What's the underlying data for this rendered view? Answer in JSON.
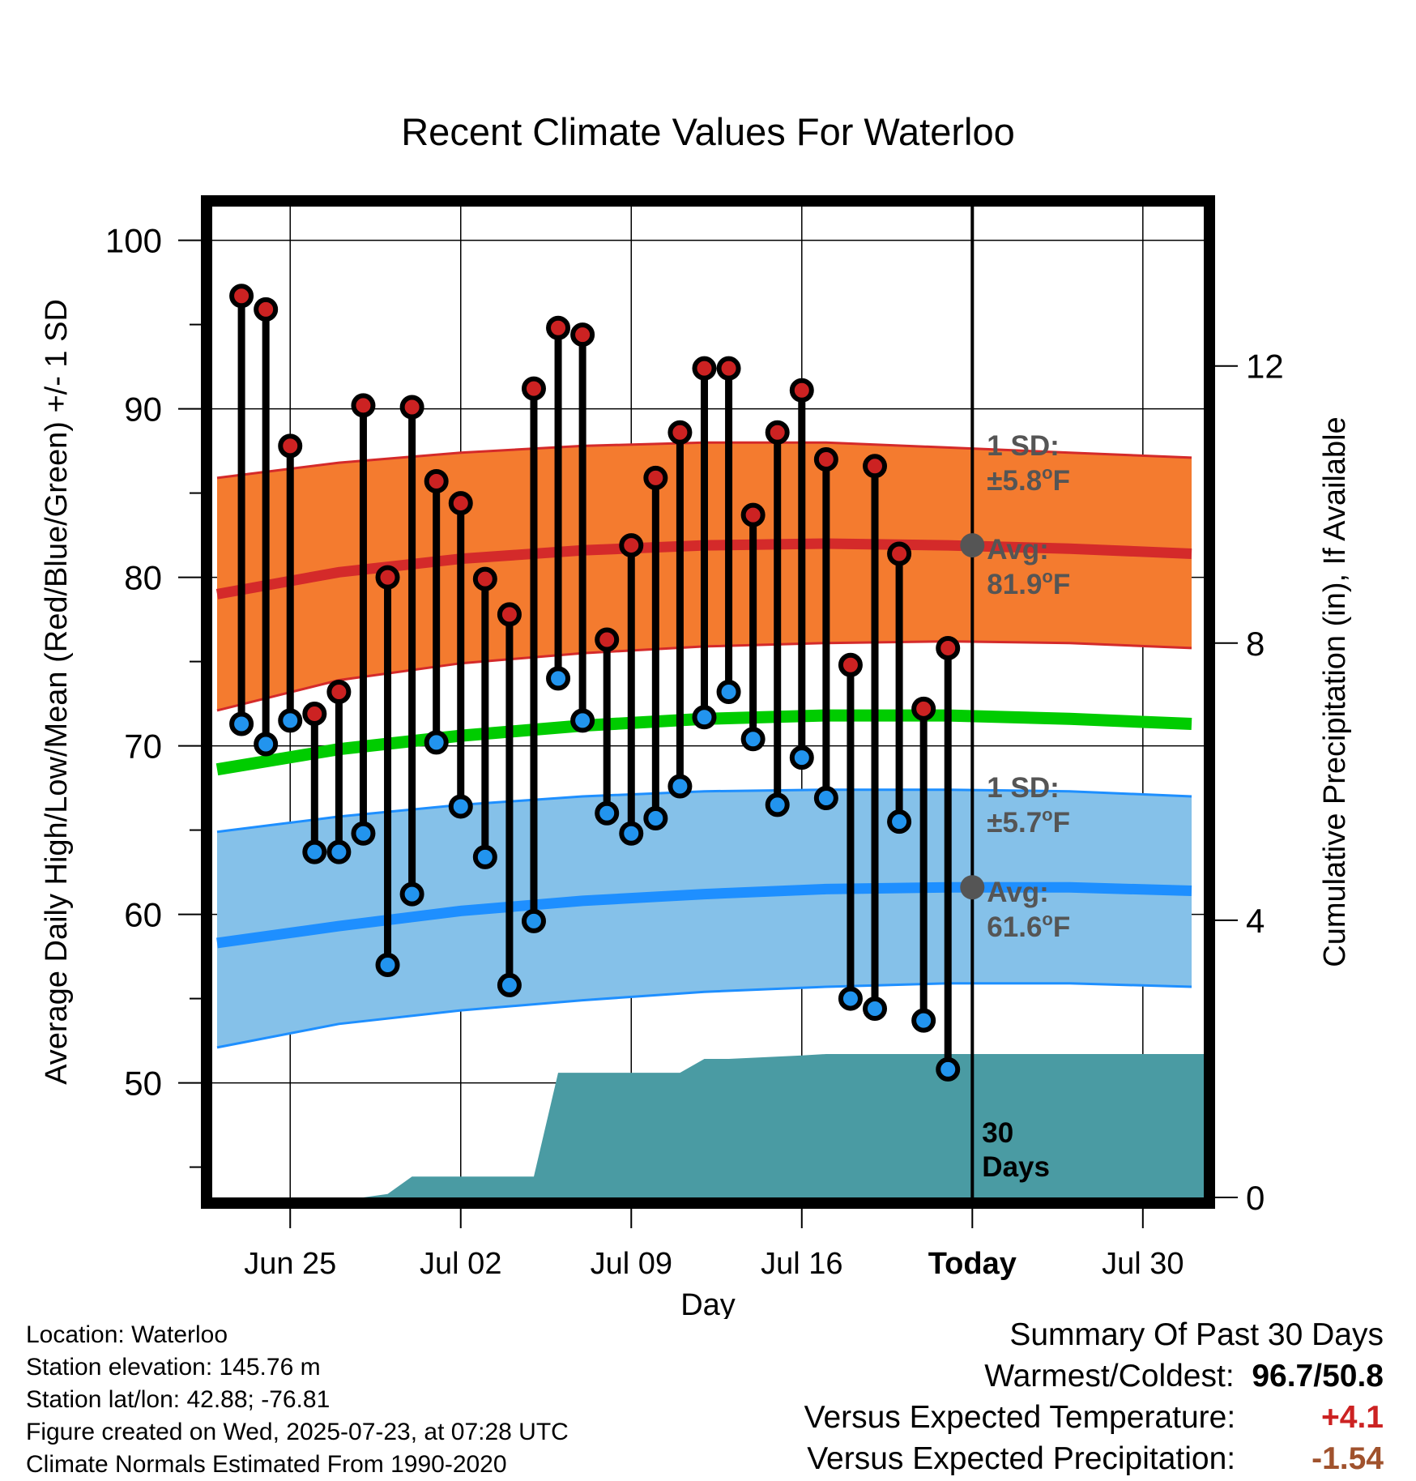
{
  "chart_data": {
    "type": "line",
    "title": "Recent Climate Values For Waterloo",
    "xlabel": "Day",
    "ylabel": "Average Daily High/Low/Mean (Red/Blue/Green) +/- 1 SD",
    "ylabel_right": "Cumulative Precipitation (in), If Available",
    "x_tick_labels": [
      {
        "day": 3,
        "label": "Jun 25"
      },
      {
        "day": 10,
        "label": "Jul 02"
      },
      {
        "day": 17,
        "label": "Jul 09"
      },
      {
        "day": 24,
        "label": "Jul 16"
      },
      {
        "day": 31,
        "label": "Today"
      },
      {
        "day": 38,
        "label": "Jul 30"
      }
    ],
    "xlim": [
      -0.2,
      40.5
    ],
    "ylim": [
      43.2,
      102
    ],
    "y_ticks": [
      50,
      60,
      70,
      80,
      90,
      100
    ],
    "y2lim": [
      0,
      14.3
    ],
    "y2_ticks": [
      0,
      4,
      8,
      12
    ],
    "today_day": 31,
    "grid": true,
    "colors": {
      "high_band": "#f47b2f",
      "high_line": "#d42a2a",
      "low_band": "#85c1e9",
      "low_line": "#1e8fff",
      "mean_line": "#00cc00",
      "precip": "#4a9ba3",
      "high_dot": "#cc2222",
      "low_dot": "#2294ee",
      "avg_marker": "#555555"
    },
    "normals": {
      "days": [
        0,
        5,
        10,
        15,
        20,
        25,
        30,
        35,
        40
      ],
      "high_avg": [
        79.0,
        80.3,
        81.1,
        81.6,
        81.9,
        82.0,
        81.9,
        81.7,
        81.4
      ],
      "high_sd_upper": [
        85.9,
        86.8,
        87.4,
        87.8,
        88.0,
        88.0,
        87.7,
        87.4,
        87.1
      ],
      "high_sd_lower": [
        72.1,
        73.9,
        74.9,
        75.5,
        75.9,
        76.1,
        76.2,
        76.1,
        75.8
      ],
      "mean": [
        68.6,
        69.8,
        70.6,
        71.2,
        71.6,
        71.8,
        71.8,
        71.6,
        71.3
      ],
      "low_avg": [
        58.3,
        59.3,
        60.2,
        60.8,
        61.2,
        61.5,
        61.6,
        61.6,
        61.4
      ],
      "low_sd_upper": [
        64.9,
        65.8,
        66.5,
        67.0,
        67.3,
        67.4,
        67.4,
        67.3,
        67.0
      ],
      "low_sd_lower": [
        52.1,
        53.5,
        54.3,
        54.9,
        55.4,
        55.7,
        55.9,
        55.9,
        55.7
      ]
    },
    "series": [
      {
        "name": "High",
        "days": [
          1,
          2,
          3,
          4,
          5,
          6,
          7,
          8,
          9,
          10,
          11,
          12,
          13,
          14,
          15,
          16,
          17,
          18,
          19,
          20,
          21,
          22,
          23,
          24,
          25,
          26,
          27,
          28,
          29,
          30
        ],
        "values": [
          96.7,
          95.9,
          87.8,
          71.9,
          73.2,
          90.2,
          80.0,
          90.1,
          85.7,
          84.4,
          79.9,
          77.8,
          91.2,
          94.8,
          94.4,
          76.3,
          81.9,
          85.9,
          88.6,
          92.4,
          92.4,
          83.7,
          88.6,
          91.1,
          87.0,
          74.8,
          86.6,
          81.4,
          72.2,
          75.8
        ]
      },
      {
        "name": "Low",
        "days": [
          1,
          2,
          3,
          4,
          5,
          6,
          7,
          8,
          9,
          10,
          11,
          12,
          13,
          14,
          15,
          16,
          17,
          18,
          19,
          20,
          21,
          22,
          23,
          24,
          25,
          26,
          27,
          28,
          29,
          30
        ],
        "values": [
          71.3,
          70.1,
          71.5,
          63.7,
          63.7,
          64.8,
          57.0,
          61.2,
          70.2,
          66.4,
          63.4,
          55.8,
          59.6,
          74.0,
          71.5,
          66.0,
          64.8,
          65.7,
          67.6,
          71.7,
          73.2,
          70.4,
          66.5,
          69.3,
          66.9,
          55.0,
          54.4,
          65.5,
          53.7,
          50.8
        ]
      }
    ],
    "precip": {
      "days": [
        0,
        6,
        7,
        8,
        13,
        14,
        19,
        20,
        21,
        24,
        25,
        40.5
      ],
      "values": [
        0,
        0,
        0.05,
        0.3,
        0.3,
        1.8,
        1.8,
        2.0,
        2.0,
        2.05,
        2.07,
        2.07
      ]
    },
    "annotations": {
      "high_sd_label": "1 SD:",
      "high_sd_value": "±5.8",
      "high_avg_label": "Avg:",
      "high_avg_value": "81.9",
      "low_sd_label": "1 SD:",
      "low_sd_value": "±5.7",
      "low_avg_label": "Avg:",
      "low_avg_value": "61.6",
      "degree": "o",
      "unit": "F",
      "days_count": "30",
      "days_word": "Days"
    }
  },
  "info": {
    "location": "Location: Waterloo",
    "elevation": "Station elevation: 145.76 m",
    "latlon": "Station lat/lon: 42.88; -76.81",
    "created": "Figure created on Wed, 2025-07-23, at 07:28 UTC",
    "normals": "Climate Normals Estimated From 1990-2020"
  },
  "summary": {
    "title": "Summary Of Past 30 Days",
    "warm_label": "Warmest/Coldest:",
    "warm_value": "96.7/50.8",
    "temp_label": "Versus Expected Temperature:",
    "temp_value": "+4.1",
    "precip_label": "Versus Expected Precipitation:",
    "precip_value": "-1.54"
  }
}
